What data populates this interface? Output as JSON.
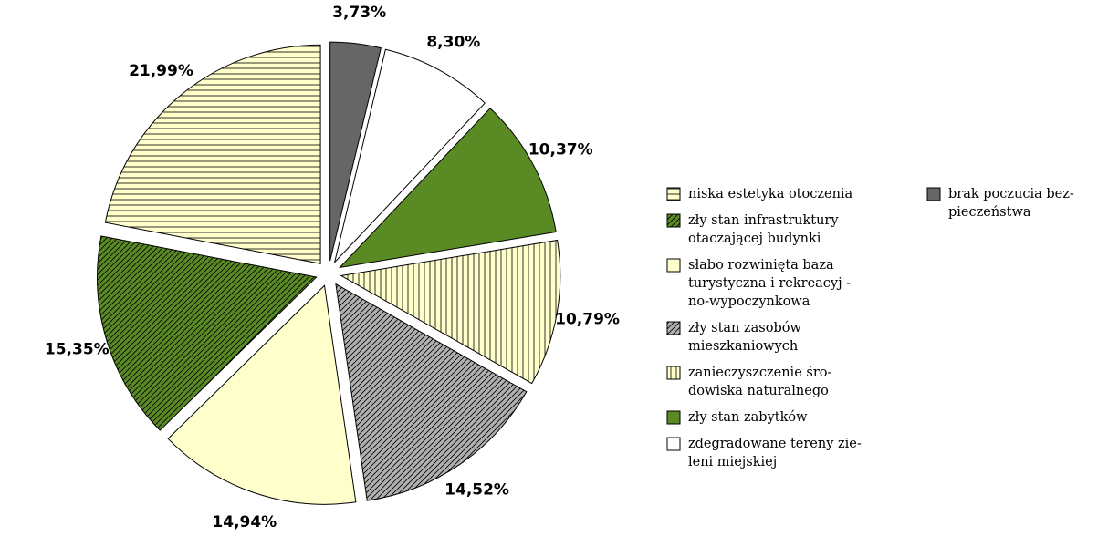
{
  "chart_data": {
    "type": "pie",
    "series": [
      {
        "name": "niska estetyka otoczenia",
        "color": "#ffffcc",
        "pattern": "horizontal"
      },
      {
        "name": "zły stan infrastruktury\notaczającej budynki",
        "color": "#5a8a23",
        "pattern": "diagonal"
      },
      {
        "name": "słabo rozwinięta baza\nturystyczna i rekreacyj -\nno-wypoczynkowa",
        "color": "#ffffcc"
      },
      {
        "name": "zły stan zasobów\nmieszkaniowych",
        "color": "#b0b0b0",
        "pattern": "diagonal"
      },
      {
        "name": "zanieczyszczenie śro-\ndowiska naturalnego",
        "color": "#ffffcc",
        "pattern": "vertical"
      },
      {
        "name": "zły stan zabytków",
        "color": "#5a8a23"
      },
      {
        "name": "zdegradowane tereny zie-\nleni miejskiej",
        "color": "#ffffff"
      },
      {
        "name": "brak poczucia bez-\npieczeństwa",
        "color": "#666666"
      }
    ],
    "values": [
      21.99,
      15.35,
      14.94,
      14.52,
      10.79,
      10.37,
      8.3,
      3.73
    ],
    "value_labels": [
      "21,99%",
      "15,35%",
      "14,94%",
      "14,52%",
      "10,79%",
      "10,37%",
      "8,30%",
      "3,73%"
    ]
  }
}
